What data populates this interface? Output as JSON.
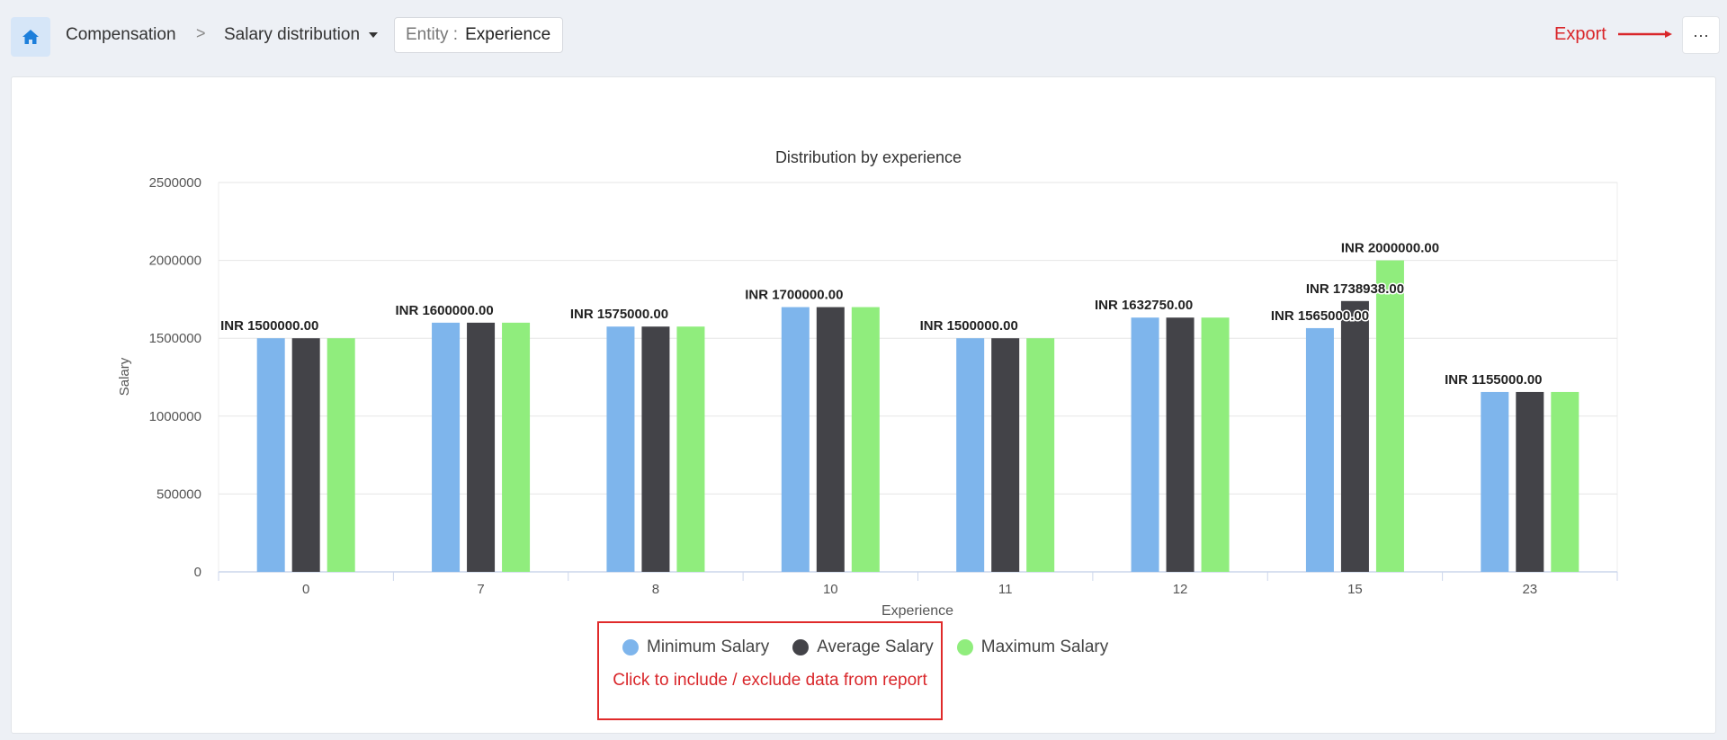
{
  "header": {
    "home_icon": "home-icon",
    "breadcrumb_root": "Compensation",
    "breadcrumb_separator": ">",
    "report_select": "Salary distribution",
    "entity_label": "Entity :",
    "entity_value": "Experience",
    "more_label": "···"
  },
  "annotation": {
    "export_label": "Export",
    "callout_text": "Click to include / exclude data from report"
  },
  "colors": {
    "accent": "#1d7fdb",
    "annotation_red": "#d9262a",
    "min": "#7eb5ec",
    "avg": "#434348",
    "max": "#90ed7d"
  },
  "chart_data": {
    "type": "bar",
    "title": "Distribution by experience",
    "xlabel": "Experience",
    "ylabel": "Salary",
    "ylim": [
      0,
      2500000
    ],
    "yticks": [
      0,
      500000,
      1000000,
      1500000,
      2000000,
      2500000
    ],
    "categories": [
      "0",
      "7",
      "8",
      "10",
      "11",
      "12",
      "15",
      "23"
    ],
    "series": [
      {
        "name": "Minimum Salary",
        "values": [
          1500000,
          1600000,
          1575000,
          1700000,
          1500000,
          1632750,
          1565000,
          1155000
        ]
      },
      {
        "name": "Average Salary",
        "values": [
          1500000,
          1600000,
          1575000,
          1700000,
          1500000,
          1632750,
          1738938,
          1155000
        ]
      },
      {
        "name": "Maximum Salary",
        "values": [
          1500000,
          1600000,
          1575000,
          1700000,
          1500000,
          1632750,
          2000000,
          1155000
        ]
      }
    ],
    "data_labels": [
      {
        "category": "0",
        "text": "INR 1500000.00"
      },
      {
        "category": "7",
        "text": "INR 1600000.00"
      },
      {
        "category": "8",
        "text": "INR 1575000.00"
      },
      {
        "category": "10",
        "text": "INR 1700000.00"
      },
      {
        "category": "11",
        "text": "INR 1500000.00"
      },
      {
        "category": "12",
        "text": "INR 1632750.00"
      },
      {
        "category": "15",
        "text": "INR 1565000.00",
        "series": "Minimum Salary"
      },
      {
        "category": "15",
        "text": "INR 1738938.00",
        "series": "Average Salary"
      },
      {
        "category": "15",
        "text": "INR 2000000.00",
        "series": "Maximum Salary"
      },
      {
        "category": "23",
        "text": "INR 1155000.00"
      }
    ],
    "grid": true,
    "legend_position": "bottom-center"
  }
}
